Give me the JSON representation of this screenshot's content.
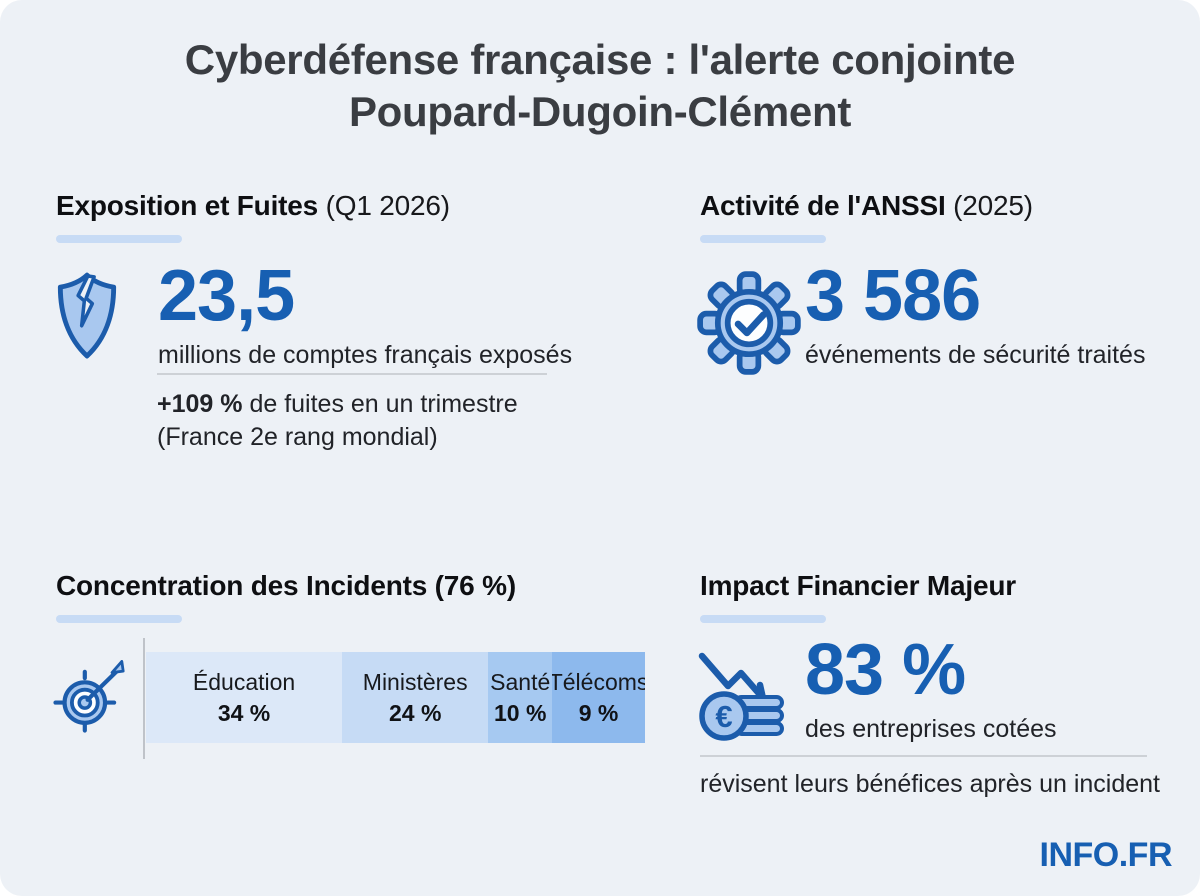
{
  "title": {
    "line1": "Cyberdéfense française : l'alerte conjointe",
    "line2": "Poupard-Dugoin-Clément"
  },
  "colors": {
    "background": "#edf1f6",
    "accent_blue": "#175fb2",
    "underline_light_blue": "#c7dbf5",
    "icon_stroke_blue": "#1c5cab",
    "icon_fill_light_blue": "#a9c8ef",
    "heading_text": "#0e0f12",
    "title_text": "#3a3d42"
  },
  "cards": {
    "exposure": {
      "heading_bold": "Exposition et Fuites",
      "heading_suffix": " (Q1 2026)",
      "icon": "broken-shield-icon",
      "big_number": "23,5",
      "big_caption": "millions de comptes français exposés",
      "note_bold": "+109 %",
      "note_rest": " de fuites en un trimestre",
      "note_line2": "(France 2e rang mondial)"
    },
    "anssi": {
      "heading_bold": "Activité de l'ANSSI",
      "heading_suffix": " (2025)",
      "icon": "gear-check-icon",
      "big_number": "3 586",
      "big_caption": "événements de sécurité traités"
    },
    "incidents": {
      "heading": "Concentration des Incidents (76 %)",
      "icon": "target-icon",
      "segments": [
        {
          "label": "Éducation",
          "value": "34 %",
          "color": "#dce8f8",
          "width_pct": 39.3
        },
        {
          "label": "Ministères",
          "value": "24 %",
          "color": "#c6dbf5",
          "width_pct": 29.3
        },
        {
          "label": "Santé",
          "value": "10 %",
          "color": "#a6c9f1",
          "width_pct": 12.8
        },
        {
          "label": "Télécoms",
          "value": "9 %",
          "color": "#8db9ed",
          "width_pct": 18.6
        }
      ]
    },
    "financial": {
      "heading": "Impact Financier Majeur",
      "icon": "euro-coins-decline-icon",
      "big_number": "83 %",
      "big_caption": "des entreprises cotées",
      "note": "révisent leurs bénéfices après un incident"
    }
  },
  "footer": {
    "brand": "INFO.FR"
  },
  "chart_data": {
    "type": "bar",
    "subtype": "horizontal-stacked",
    "title": "Concentration des Incidents (76 %)",
    "categories": [
      "Éducation",
      "Ministères",
      "Santé",
      "Télécoms"
    ],
    "values": [
      34,
      24,
      10,
      9
    ],
    "unit": "%",
    "legend_position": "inside-segments",
    "notes": "Single stacked horizontal bar; labels and bold percentages rendered inside each segment; heading states combined concentration of 76 %"
  }
}
